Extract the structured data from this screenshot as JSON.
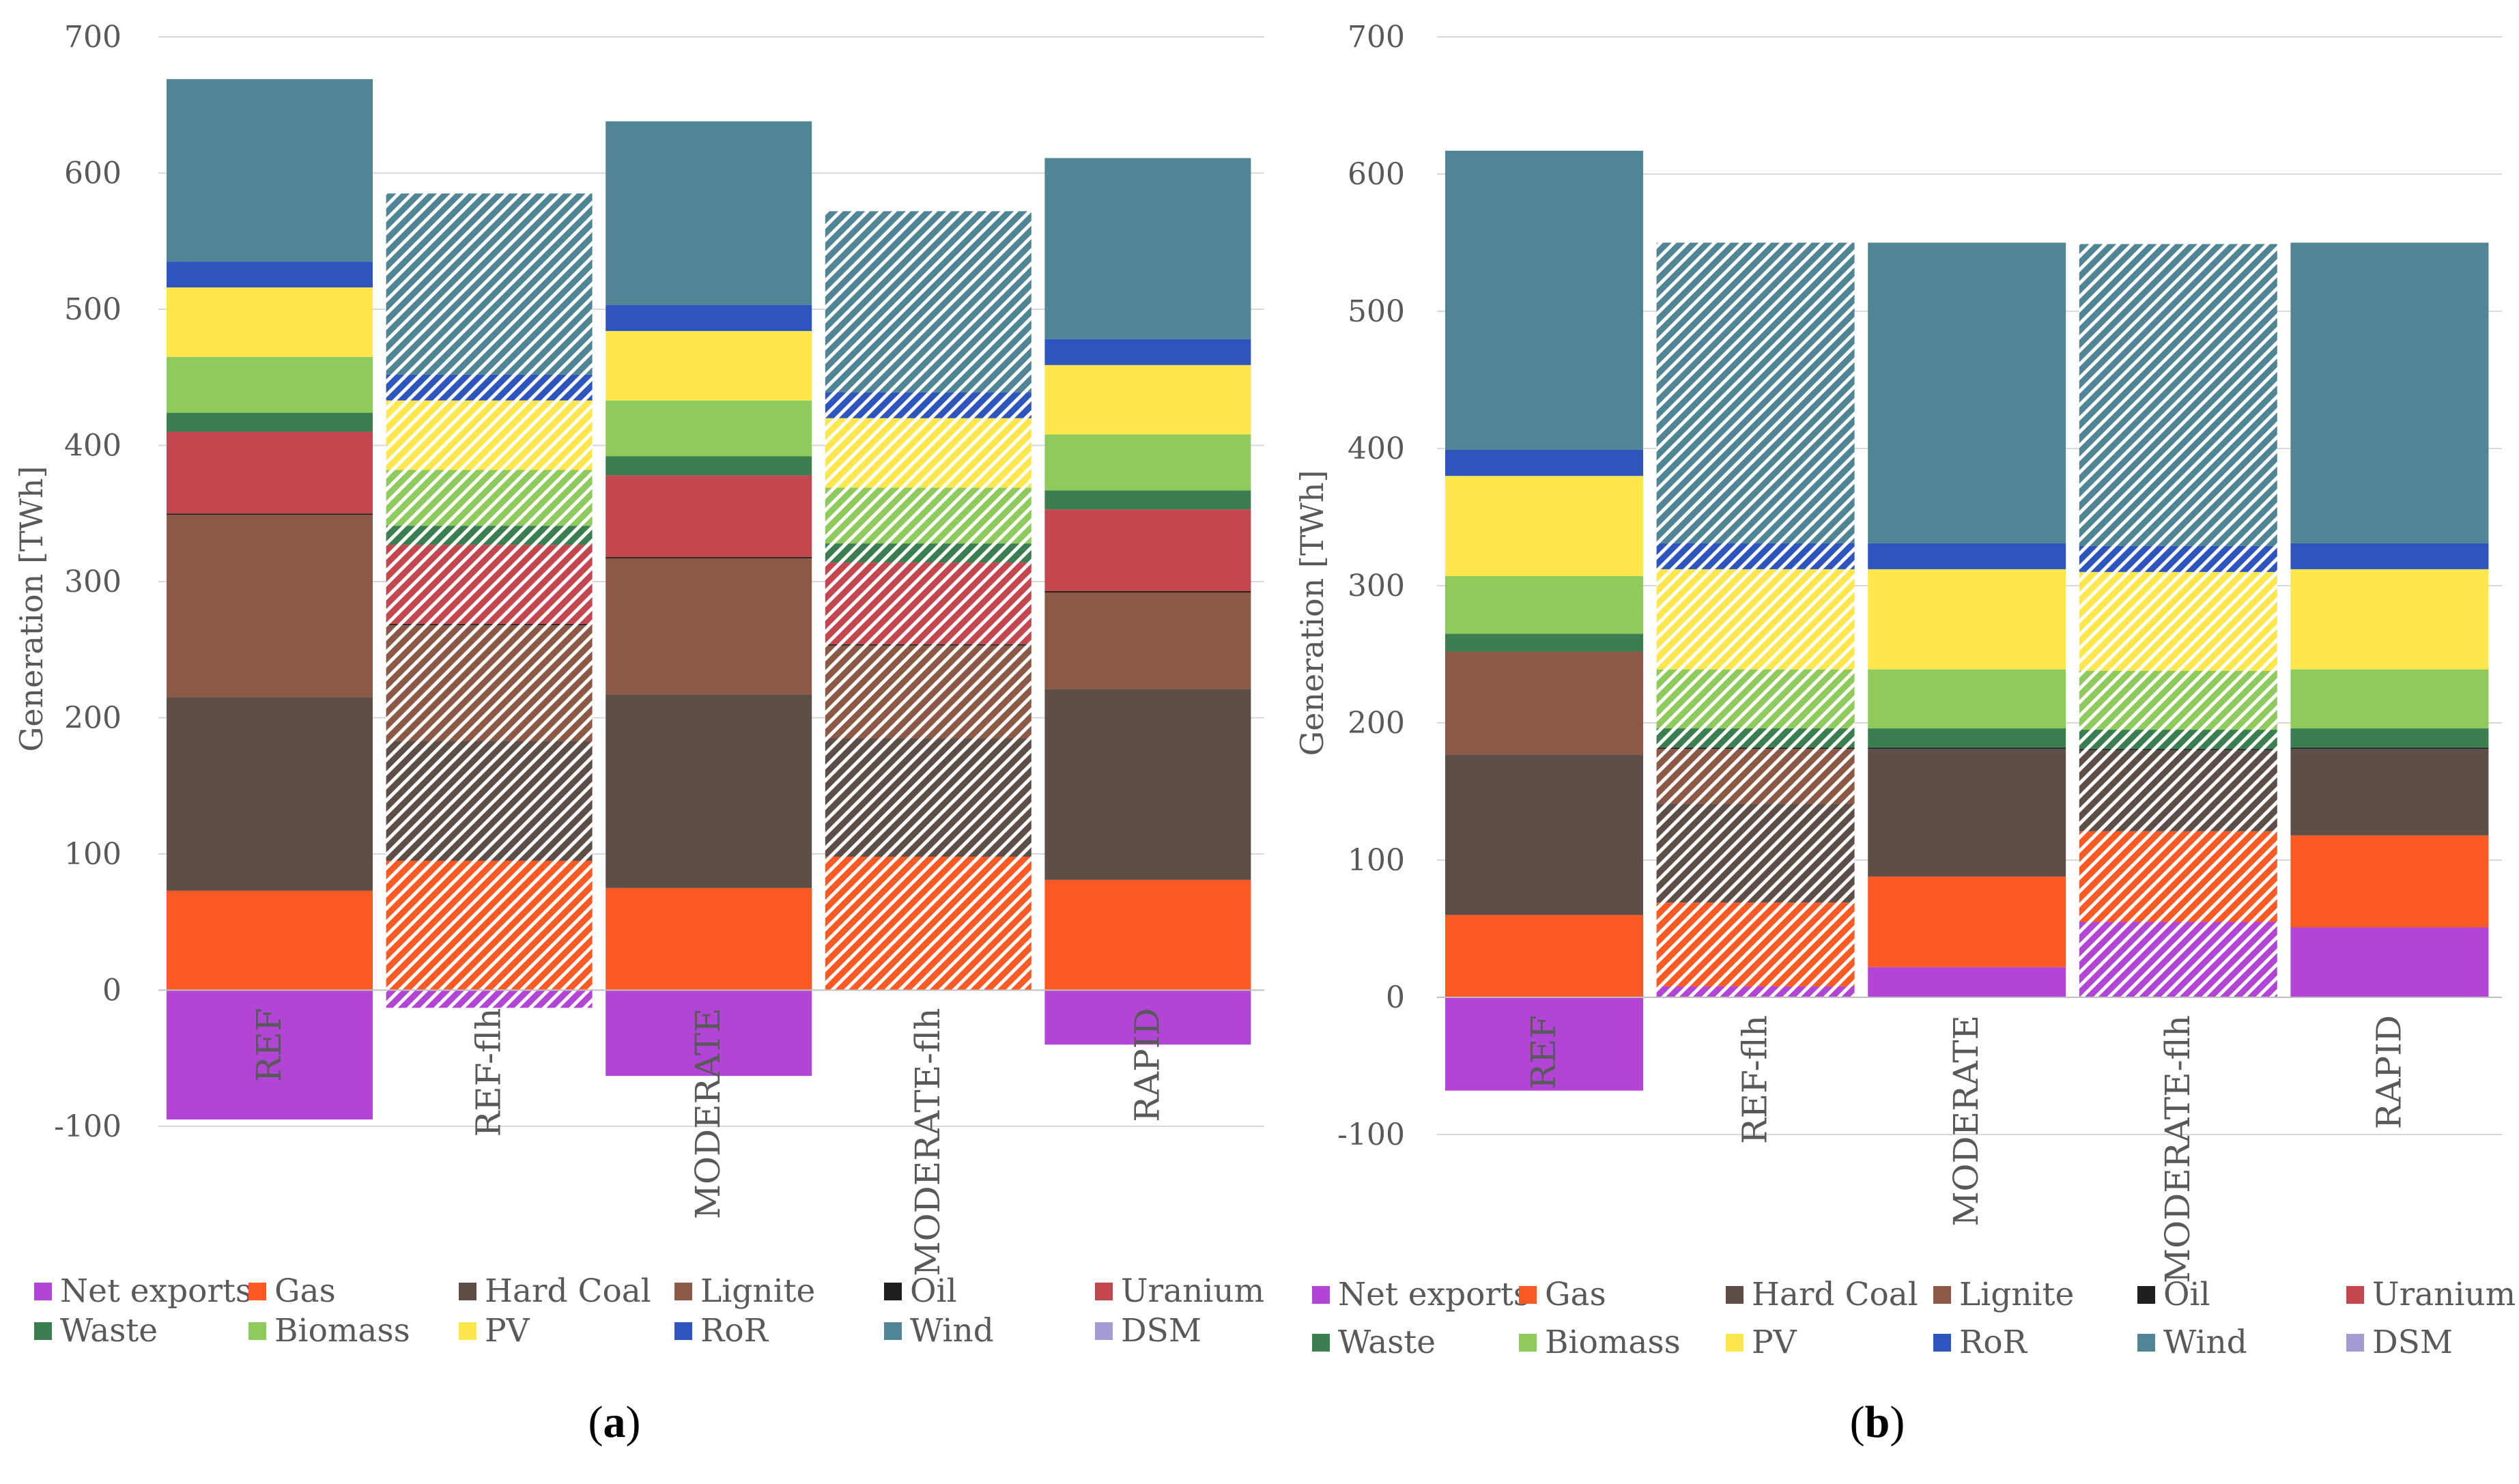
{
  "chart_data": [
    {
      "type": "bar",
      "stacked": true,
      "panel_label": "a",
      "ylabel": "Generation [TWh]",
      "ylim": [
        -100,
        700
      ],
      "yticks": [
        -100,
        0,
        100,
        200,
        300,
        400,
        500,
        600,
        700
      ],
      "grid": true,
      "categories": [
        "REF",
        "REF-flh",
        "MODERATE",
        "MODERATE-flh",
        "RAPID"
      ],
      "hatched_categories": [
        "REF-flh",
        "MODERATE-flh"
      ],
      "series": [
        {
          "name": "Net exports",
          "color": "#b245d6",
          "values": [
            -95,
            -13,
            -63,
            0,
            -40
          ]
        },
        {
          "name": "Gas",
          "color": "#fc5a25",
          "values": [
            73,
            95,
            75,
            98,
            81
          ]
        },
        {
          "name": "Hard Coal",
          "color": "#5e4e48",
          "values": [
            142,
            88,
            142,
            87,
            140
          ]
        },
        {
          "name": "Lignite",
          "color": "#8b5946",
          "values": [
            134,
            85,
            100,
            68,
            71
          ]
        },
        {
          "name": "Oil",
          "color": "#1f1f1f",
          "values": [
            1,
            1,
            1,
            1,
            1
          ]
        },
        {
          "name": "Uranium",
          "color": "#c4474f",
          "values": [
            60,
            58,
            60,
            60,
            60
          ]
        },
        {
          "name": "Waste",
          "color": "#3b7f50",
          "values": [
            14,
            14,
            14,
            14,
            14
          ]
        },
        {
          "name": "Biomass",
          "color": "#8fcb5c",
          "values": [
            41,
            41,
            41,
            41,
            41
          ]
        },
        {
          "name": "PV",
          "color": "#fde74c",
          "values": [
            51,
            51,
            51,
            51,
            51
          ]
        },
        {
          "name": "RoR",
          "color": "#2d55bd",
          "values": [
            19,
            19,
            19,
            19,
            19
          ]
        },
        {
          "name": "Wind",
          "color": "#4f8595",
          "values": [
            134,
            133,
            135,
            133,
            133
          ]
        },
        {
          "name": "DSM",
          "color": "#a59ad1",
          "values": [
            0,
            0,
            0,
            0,
            0
          ]
        }
      ]
    },
    {
      "type": "bar",
      "stacked": true,
      "panel_label": "b",
      "ylabel": "Generation [TWh]",
      "ylim": [
        -100,
        700
      ],
      "yticks": [
        -100,
        0,
        100,
        200,
        300,
        400,
        500,
        600,
        700
      ],
      "grid": true,
      "categories": [
        "REF",
        "REF-flh",
        "MODERATE",
        "MODERATE-flh",
        "RAPID"
      ],
      "hatched_categories": [
        "REF-flh",
        "MODERATE-flh"
      ],
      "series": [
        {
          "name": "Net exports",
          "color": "#b245d6",
          "values": [
            -68,
            8,
            22,
            55,
            51
          ]
        },
        {
          "name": "Gas",
          "color": "#fc5a25",
          "values": [
            60,
            61,
            66,
            66,
            67
          ]
        },
        {
          "name": "Hard Coal",
          "color": "#5e4e48",
          "values": [
            117,
            72,
            93,
            59,
            63
          ]
        },
        {
          "name": "Lignite",
          "color": "#8b5946",
          "values": [
            75,
            40,
            0,
            0,
            0
          ]
        },
        {
          "name": "Oil",
          "color": "#1f1f1f",
          "values": [
            0,
            1,
            1,
            1,
            1
          ]
        },
        {
          "name": "Uranium",
          "color": "#c4474f",
          "values": [
            0,
            0,
            0,
            0,
            0
          ]
        },
        {
          "name": "Waste",
          "color": "#3b7f50",
          "values": [
            13,
            14,
            14,
            14,
            14
          ]
        },
        {
          "name": "Biomass",
          "color": "#8fcb5c",
          "values": [
            42,
            43,
            43,
            43,
            43
          ]
        },
        {
          "name": "PV",
          "color": "#fde74c",
          "values": [
            73,
            73,
            73,
            72,
            73
          ]
        },
        {
          "name": "RoR",
          "color": "#2d55bd",
          "values": [
            19,
            19,
            19,
            19,
            19
          ]
        },
        {
          "name": "Wind",
          "color": "#4f8595",
          "values": [
            218,
            219,
            219,
            220,
            219
          ]
        },
        {
          "name": "DSM",
          "color": "#a59ad1",
          "values": [
            0,
            0,
            0,
            0,
            0
          ]
        }
      ]
    }
  ]
}
